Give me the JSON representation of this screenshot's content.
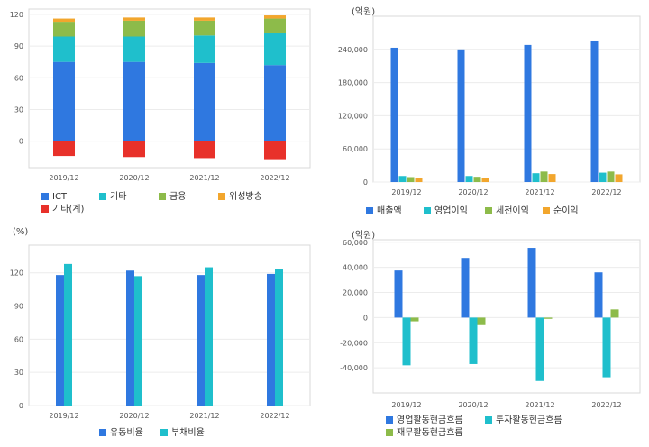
{
  "chart_data": [
    {
      "id": "revenue-mix",
      "type": "bar",
      "stacked": true,
      "unit_label": "",
      "categories": [
        "2019/12",
        "2020/12",
        "2021/12",
        "2022/12"
      ],
      "series": [
        {
          "name": "ICT",
          "color": "#2f78e0",
          "values": [
            75,
            75,
            74,
            72
          ]
        },
        {
          "name": "기타",
          "color": "#1fbfcc",
          "values": [
            24,
            24,
            26,
            30
          ]
        },
        {
          "name": "금융",
          "color": "#8dbb4a",
          "values": [
            14,
            15,
            14,
            14
          ]
        },
        {
          "name": "위성방송",
          "color": "#f2a62d",
          "values": [
            3,
            3,
            3,
            3
          ]
        },
        {
          "name": "기타(계)",
          "color": "#e8312a",
          "values": [
            -14,
            -15,
            -16,
            -17
          ]
        }
      ],
      "ylim": [
        -25,
        125
      ],
      "yticks": [
        0,
        30,
        60,
        90,
        120
      ],
      "grid": true,
      "legend": "bottom"
    },
    {
      "id": "income",
      "type": "bar",
      "unit_label": "(억원)",
      "categories": [
        "2019/12",
        "2020/12",
        "2021/12",
        "2022/12"
      ],
      "series": [
        {
          "name": "매출액",
          "color": "#2f78e0",
          "values": [
            243000,
            240000,
            248000,
            256000
          ]
        },
        {
          "name": "영업이익",
          "color": "#1fbfcc",
          "values": [
            11000,
            11000,
            16000,
            17000
          ]
        },
        {
          "name": "세전이익",
          "color": "#8dbb4a",
          "values": [
            9000,
            9500,
            19000,
            19000
          ]
        },
        {
          "name": "순이익",
          "color": "#f2a62d",
          "values": [
            6500,
            7000,
            14500,
            14000
          ]
        }
      ],
      "ylim": [
        0,
        300000
      ],
      "yticks": [
        0,
        60000,
        120000,
        180000,
        240000
      ],
      "grid": true,
      "legend": "bottom"
    },
    {
      "id": "ratios",
      "type": "bar",
      "unit_label": "(%)",
      "categories": [
        "2019/12",
        "2020/12",
        "2021/12",
        "2022/12"
      ],
      "series": [
        {
          "name": "유동비율",
          "color": "#2f78e0",
          "values": [
            118,
            122,
            118,
            119
          ]
        },
        {
          "name": "부채비율",
          "color": "#1fbfcc",
          "values": [
            128,
            117,
            125,
            123
          ]
        }
      ],
      "ylim": [
        0,
        145
      ],
      "yticks": [
        0,
        30,
        60,
        90,
        120
      ],
      "grid": true,
      "legend": "bottom"
    },
    {
      "id": "cashflow",
      "type": "bar",
      "unit_label": "(억원)",
      "categories": [
        "2019/12",
        "2020/12",
        "2021/12",
        "2022/12"
      ],
      "series": [
        {
          "name": "영업활동현금흐름",
          "color": "#2f78e0",
          "values": [
            37500,
            47500,
            55500,
            36000
          ]
        },
        {
          "name": "투자활동현금흐름",
          "color": "#1fbfcc",
          "values": [
            -38000,
            -37000,
            -50500,
            -47500
          ]
        },
        {
          "name": "재무활동현금흐름",
          "color": "#8dbb4a",
          "values": [
            -3000,
            -6000,
            -1000,
            6500
          ]
        }
      ],
      "ylim": [
        -60000,
        62000
      ],
      "yticks": [
        -40000,
        -20000,
        0,
        20000,
        40000,
        60000
      ],
      "grid": true,
      "legend": "bottom"
    }
  ]
}
